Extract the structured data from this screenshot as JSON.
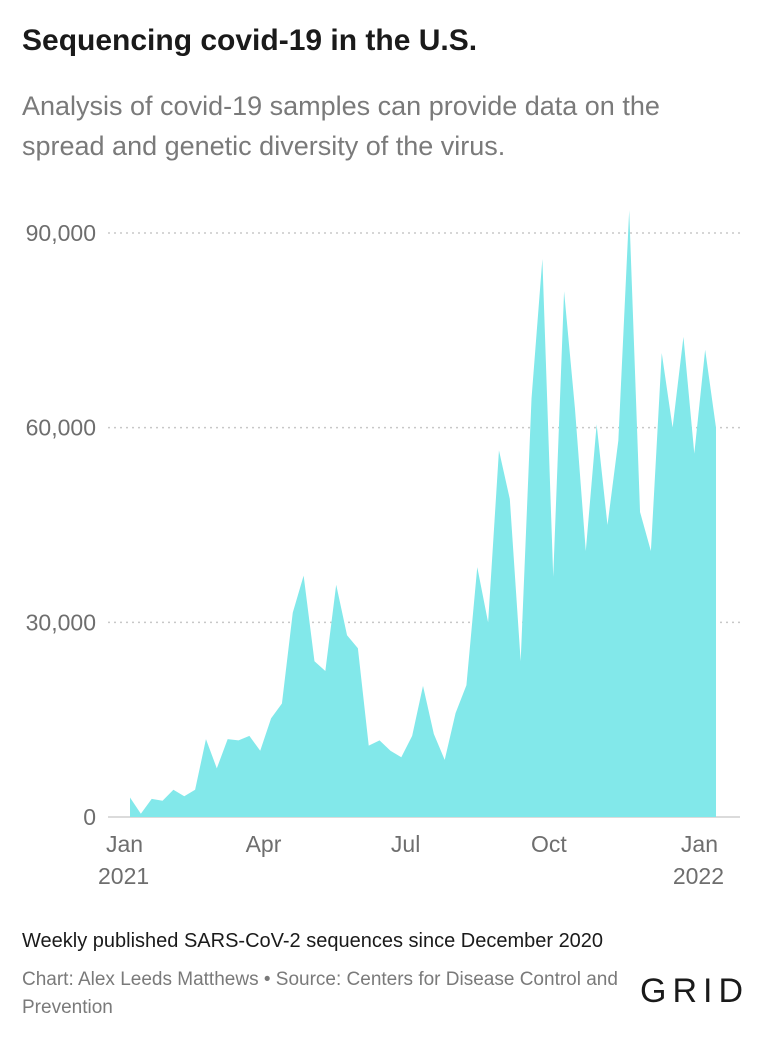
{
  "title": "Sequencing covid-19 in the U.S.",
  "subtitle": "Analysis of covid-19 samples can provide data on the spread and genetic diversity of the virus.",
  "caption": "Weekly published SARS-CoV-2 sequences since December 2020",
  "source": "Chart: Alex Leeds Matthews • Source: Centers for Disease Control and Prevention",
  "logo": "GRID",
  "chart_data": {
    "type": "area",
    "title": "Sequencing covid-19 in the U.S.",
    "xlabel": "",
    "ylabel": "",
    "ylim": [
      0,
      90000
    ],
    "yticks": [
      {
        "value": 0,
        "label": "0"
      },
      {
        "value": 30000,
        "label": "30,000"
      },
      {
        "value": 60000,
        "label": "60,000"
      },
      {
        "value": 90000,
        "label": "90,000"
      }
    ],
    "xticks": [
      {
        "week": 0,
        "line1": "Jan",
        "line2": "2021"
      },
      {
        "week": 12.3,
        "line1": "Apr",
        "line2": ""
      },
      {
        "week": 25.4,
        "line1": "Jul",
        "line2": ""
      },
      {
        "week": 38.6,
        "line1": "Oct",
        "line2": ""
      },
      {
        "week": 51.7,
        "line1": "Jan",
        "line2": "2022"
      }
    ],
    "grid": true,
    "fill_color": "#82e8ea",
    "grid_color": "#c8c8c8",
    "series": [
      {
        "values": [
          3000,
          500,
          2800,
          2500,
          4200,
          3200,
          4200,
          12000,
          7500,
          12000,
          11800,
          12500,
          10200,
          15200,
          17500,
          31500,
          37200,
          24000,
          22500,
          35800,
          28000,
          26000,
          11000,
          11800,
          10200,
          9200,
          12500,
          20200,
          12800,
          8800,
          16000,
          20300,
          38500,
          30000,
          56500,
          49000,
          24000,
          64500,
          86000,
          37000,
          81000,
          63000,
          41000,
          60500,
          45000,
          58000,
          93500,
          47000,
          41000,
          71500,
          60000,
          74000,
          56000,
          72000,
          60000
        ]
      }
    ]
  }
}
